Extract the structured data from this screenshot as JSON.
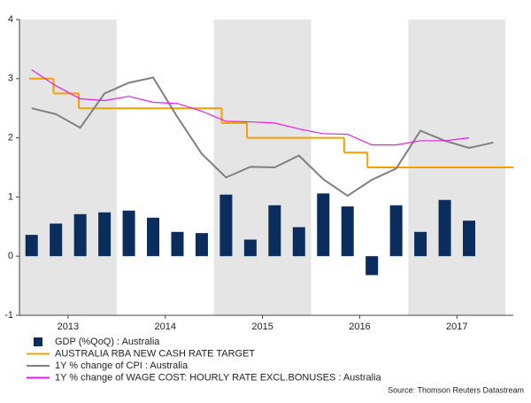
{
  "chart_data": {
    "type": "combo",
    "xlim": [
      2013.0,
      2018.08
    ],
    "xticks": [
      {
        "value": 2013.5,
        "label": "2013"
      },
      {
        "value": 2014.5,
        "label": "2014"
      },
      {
        "value": 2015.5,
        "label": "2015"
      },
      {
        "value": 2016.5,
        "label": "2016"
      },
      {
        "value": 2017.5,
        "label": "2017"
      }
    ],
    "ylim": [
      -1,
      4
    ],
    "yticks": [
      -1,
      0,
      1,
      2,
      3,
      4
    ],
    "shade_color": "#e5e5e5",
    "series": [
      {
        "name": "GDP (%QoQ) : Australia",
        "type": "bar",
        "color": "#0a2d5e",
        "x": [
          2013.125,
          2013.375,
          2013.625,
          2013.875,
          2014.125,
          2014.375,
          2014.625,
          2014.875,
          2015.125,
          2015.375,
          2015.625,
          2015.875,
          2016.125,
          2016.375,
          2016.625,
          2016.875,
          2017.125,
          2017.375,
          2017.625
        ],
        "values": [
          0.36,
          0.55,
          0.71,
          0.74,
          0.77,
          0.65,
          0.41,
          0.39,
          1.04,
          0.28,
          0.86,
          0.49,
          1.06,
          0.84,
          -0.32,
          0.86,
          0.41,
          0.95,
          0.6
        ]
      },
      {
        "name": "AUSTRALIA RBA NEW CASH RATE TARGET",
        "type": "step",
        "color": "#f5a000",
        "x": [
          2013.1,
          2013.35,
          2013.61,
          2015.08,
          2015.34,
          2016.34,
          2016.58
        ],
        "values": [
          3.0,
          2.75,
          2.5,
          2.25,
          2.0,
          1.75,
          1.5
        ]
      },
      {
        "name": "1Y % change of CPI : Australia",
        "type": "line",
        "color": "#808080",
        "x": [
          2013.125,
          2013.375,
          2013.625,
          2013.875,
          2014.125,
          2014.375,
          2014.625,
          2014.875,
          2015.125,
          2015.375,
          2015.625,
          2015.875,
          2016.125,
          2016.375,
          2016.625,
          2016.875,
          2017.125,
          2017.375,
          2017.625,
          2017.875
        ],
        "values": [
          2.5,
          2.4,
          2.17,
          2.75,
          2.93,
          3.02,
          2.35,
          1.73,
          1.33,
          1.51,
          1.5,
          1.7,
          1.3,
          1.02,
          1.29,
          1.48,
          2.12,
          1.95,
          1.83,
          1.92
        ]
      },
      {
        "name": "1Y % change of WAGE COST: HOURLY RATE EXCL.BONUSES : Australia",
        "type": "line",
        "color": "#e61ee6",
        "x": [
          2013.125,
          2013.375,
          2013.625,
          2013.875,
          2014.125,
          2014.375,
          2014.625,
          2014.875,
          2015.125,
          2015.375,
          2015.625,
          2015.875,
          2016.125,
          2016.375,
          2016.625,
          2016.875,
          2017.125,
          2017.375,
          2017.625
        ],
        "values": [
          3.15,
          2.88,
          2.66,
          2.63,
          2.7,
          2.6,
          2.58,
          2.45,
          2.28,
          2.27,
          2.25,
          2.15,
          2.07,
          2.06,
          1.88,
          1.88,
          1.95,
          1.95,
          2.0
        ]
      }
    ],
    "source": "Source: Thomson Reuters Datastream"
  }
}
